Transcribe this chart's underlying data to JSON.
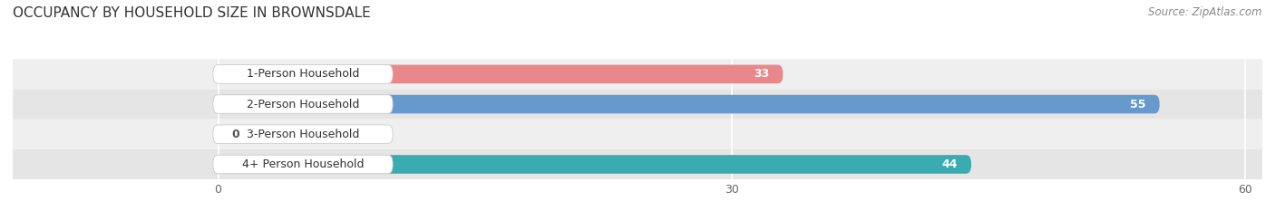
{
  "title": "OCCUPANCY BY HOUSEHOLD SIZE IN BROWNSDALE",
  "source": "Source: ZipAtlas.com",
  "categories": [
    "1-Person Household",
    "2-Person Household",
    "3-Person Household",
    "4+ Person Household"
  ],
  "values": [
    33,
    55,
    0,
    44
  ],
  "bar_colors": [
    "#E8888A",
    "#6699CC",
    "#C9A8D4",
    "#3AABB0"
  ],
  "xlim_min": 0,
  "xlim_max": 60,
  "xticks": [
    0,
    30,
    60
  ],
  "title_fontsize": 11,
  "source_fontsize": 8.5,
  "tick_fontsize": 9,
  "bar_label_fontsize": 9,
  "category_fontsize": 9,
  "background_color": "#FFFFFF",
  "bar_height": 0.62,
  "row_bg_colors": [
    "#EFEFEF",
    "#E5E5E5"
  ],
  "row_bg_alpha": 1.0
}
